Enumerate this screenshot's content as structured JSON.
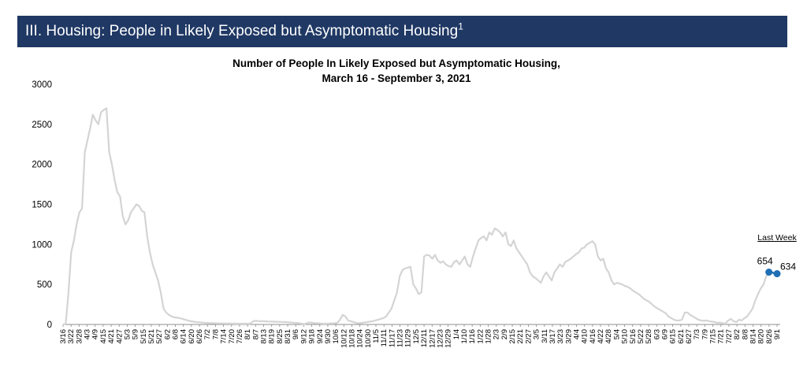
{
  "header": {
    "title": "III. Housing: People in Likely Exposed but Asymptomatic Housing",
    "footnote": "1"
  },
  "colors": {
    "banner": "#1f3864",
    "line": "#d4d4d4",
    "highlight": "#1f6fb5"
  },
  "chart_data": {
    "type": "line",
    "title_line1": "Number of People In Likely Exposed but Asymptomatic Housing,",
    "title_line2": "March 16 - September 3, 2021",
    "xlabel": "",
    "ylabel": "",
    "ylim": [
      0,
      3000
    ],
    "yticks": [
      "3000",
      "2500",
      "2000",
      "1500",
      "1000",
      "500",
      "0"
    ],
    "grid": false,
    "x_tick_labels": [
      "3/16",
      "3/22",
      "3/28",
      "4/3",
      "4/9",
      "4/15",
      "4/21",
      "4/27",
      "5/3",
      "5/9",
      "5/15",
      "5/21",
      "5/27",
      "6/2",
      "6/8",
      "6/14",
      "6/20",
      "6/26",
      "7/2",
      "7/8",
      "7/14",
      "7/20",
      "7/26",
      "8/1",
      "8/7",
      "8/13",
      "8/19",
      "8/25",
      "8/31",
      "9/6",
      "9/12",
      "9/18",
      "9/24",
      "9/30",
      "10/6",
      "10/12",
      "10/18",
      "10/24",
      "10/30",
      "11/5",
      "11/11",
      "11/17",
      "11/23",
      "11/29",
      "12/5",
      "12/11",
      "12/17",
      "12/23",
      "12/29",
      "1/4",
      "1/10",
      "1/16",
      "1/22",
      "1/28",
      "2/3",
      "2/9",
      "2/15",
      "2/21",
      "2/27",
      "3/5",
      "3/11",
      "3/17",
      "3/23",
      "3/29",
      "4/4",
      "4/10",
      "4/16",
      "4/22",
      "4/28",
      "5/4",
      "5/10",
      "5/16",
      "5/22",
      "5/28",
      "6/3",
      "6/9",
      "6/15",
      "6/21",
      "6/27",
      "7/3",
      "7/9",
      "7/15",
      "7/21",
      "7/27",
      "8/2",
      "8/8",
      "8/14",
      "8/20",
      "8/26",
      "9/1"
    ],
    "series": [
      {
        "values": [
          0,
          10,
          400,
          900,
          1050,
          1250,
          1400,
          1450,
          2150,
          2300,
          2450,
          2620,
          2550,
          2500,
          2650,
          2680,
          2700,
          2150,
          2000,
          1800,
          1650,
          1600,
          1350,
          1250,
          1300,
          1400,
          1450,
          1500,
          1480,
          1420,
          1400,
          1100,
          900,
          750,
          650,
          550,
          400,
          200,
          150,
          120,
          100,
          90,
          85,
          80,
          70,
          60,
          50,
          40,
          35,
          30,
          28,
          25,
          22,
          20,
          18,
          16,
          15,
          14,
          13,
          12,
          12,
          12,
          11,
          11,
          10,
          10,
          10,
          10,
          10,
          10,
          40,
          45,
          42,
          40,
          40,
          38,
          36,
          35,
          34,
          33,
          32,
          31,
          30,
          28,
          25,
          22,
          20,
          15,
          10,
          5,
          20,
          25,
          20,
          15,
          15,
          12,
          10,
          10,
          12,
          14,
          15,
          20,
          60,
          120,
          100,
          50,
          40,
          30,
          20,
          15,
          20,
          25,
          30,
          35,
          40,
          50,
          60,
          70,
          80,
          100,
          150,
          200,
          300,
          400,
          600,
          680,
          700,
          710,
          720,
          500,
          450,
          380,
          400,
          850,
          870,
          860,
          820,
          870,
          800,
          770,
          790,
          750,
          730,
          720,
          780,
          800,
          750,
          800,
          850,
          750,
          720,
          850,
          950,
          1050,
          1080,
          1100,
          1050,
          1150,
          1120,
          1200,
          1180,
          1150,
          1100,
          1150,
          1000,
          980,
          1050,
          950,
          900,
          850,
          800,
          750,
          650,
          600,
          580,
          550,
          520,
          600,
          650,
          600,
          550,
          650,
          700,
          750,
          720,
          780,
          800,
          820,
          850,
          880,
          900,
          950,
          960,
          1000,
          1020,
          1040,
          1000,
          850,
          800,
          820,
          700,
          650,
          550,
          500,
          520,
          510,
          500,
          480,
          470,
          450,
          420,
          400,
          380,
          350,
          320,
          300,
          280,
          250,
          220,
          200,
          180,
          160,
          140,
          100,
          80,
          60,
          50,
          50,
          60,
          150,
          150,
          120,
          100,
          80,
          60,
          50,
          45,
          50,
          40,
          35,
          30,
          20,
          25,
          15,
          10,
          50,
          70,
          40,
          30,
          60,
          50,
          80,
          100,
          150,
          200,
          300,
          380,
          450,
          500,
          600,
          654,
          650,
          640,
          634
        ]
      }
    ],
    "labeled_points": [
      {
        "label": "654",
        "value": 654
      },
      {
        "label": "634",
        "value": 634
      }
    ],
    "annotation": "Last Week"
  }
}
